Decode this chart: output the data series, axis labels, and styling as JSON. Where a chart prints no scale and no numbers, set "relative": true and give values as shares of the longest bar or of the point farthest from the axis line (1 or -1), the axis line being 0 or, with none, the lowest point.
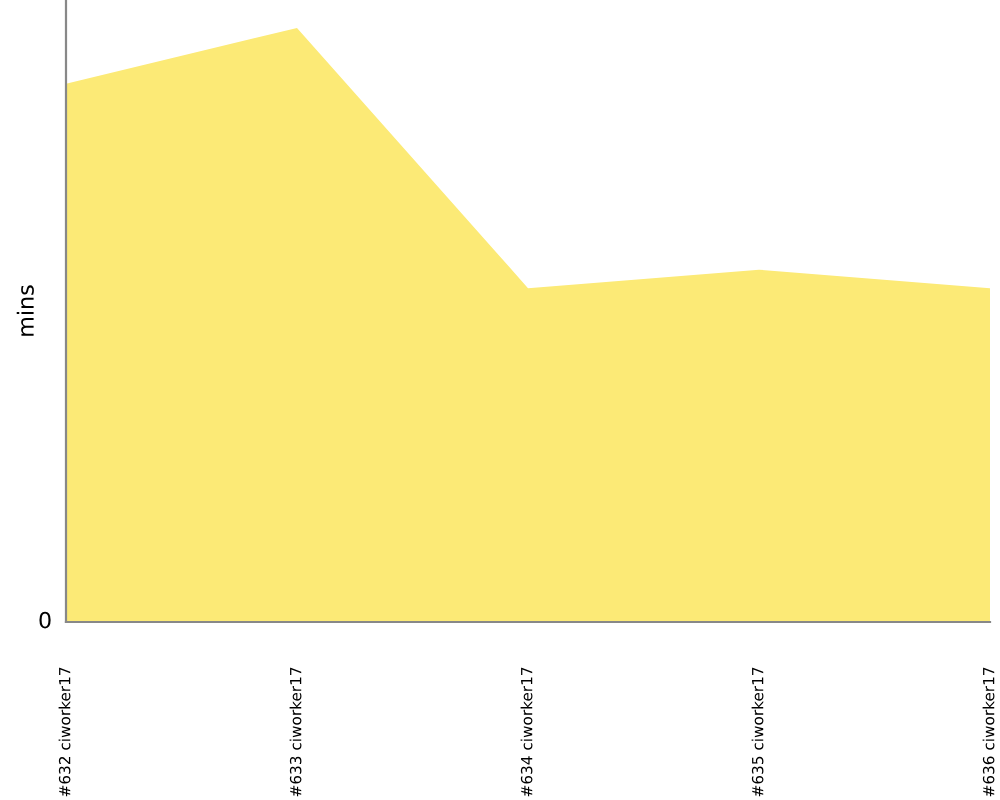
{
  "chart_data": {
    "type": "area",
    "ylabel": "mins",
    "categories": [
      "#632 ciworker17",
      "#633 ciworker17",
      "#634 ciworker17",
      "#635 ciworker17",
      "#636 ciworker17"
    ],
    "relative": true,
    "annotations": [
      "0"
    ],
    "series": [
      {
        "color": "#fcea76",
        "values": [
          0.906,
          1,
          0.562,
          0.593,
          0.562
        ]
      }
    ],
    "grid": false
  }
}
